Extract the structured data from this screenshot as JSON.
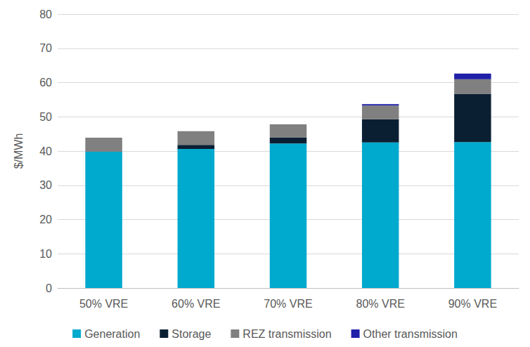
{
  "chart_data": {
    "type": "bar",
    "stacked": true,
    "grid": true,
    "legend": "bottom",
    "y_label": "$/MWh",
    "categories": [
      "50% VRE",
      "60% VRE",
      "70% VRE",
      "80% VRE",
      "90% VRE"
    ],
    "series": [
      {
        "name": "Generation",
        "color": "#00a9ce",
        "values": [
          39.8,
          40.6,
          42.2,
          42.5,
          42.6
        ]
      },
      {
        "name": "Storage",
        "color": "#0b1f33",
        "values": [
          0,
          1.2,
          1.8,
          6.8,
          14.1
        ]
      },
      {
        "name": "REZ transmission",
        "color": "#808080",
        "values": [
          4.1,
          4.0,
          3.8,
          4.0,
          4.3
        ]
      },
      {
        "name": "Other transmission",
        "color": "#1f1fa8",
        "values": [
          0,
          0,
          0,
          0.4,
          1.6
        ]
      }
    ],
    "ylim": [
      0,
      80
    ],
    "yticks": [
      0,
      10,
      20,
      30,
      40,
      50,
      60,
      70,
      80
    ]
  }
}
